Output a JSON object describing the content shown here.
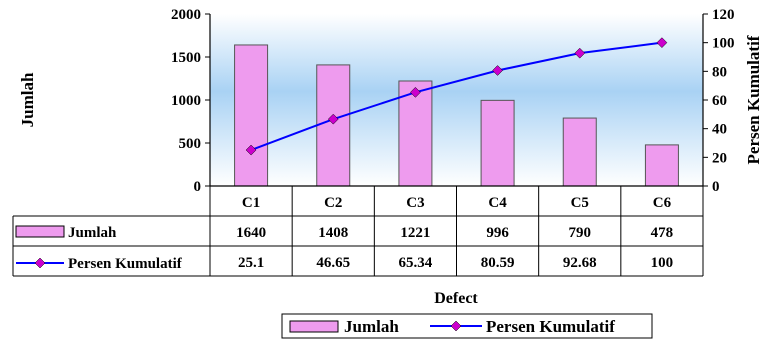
{
  "chart_data": {
    "type": "bar",
    "categories": [
      "C1",
      "C2",
      "C3",
      "C4",
      "C5",
      "C6"
    ],
    "xlabel": "Defect",
    "ylabel": "Jumlah",
    "y2label": "Persen Kumulatif",
    "ylim": [
      0,
      2000
    ],
    "y2lim": [
      0,
      120
    ],
    "yticks": [
      "0",
      "500",
      "1000",
      "1500",
      "2000"
    ],
    "y2ticks": [
      "0",
      "20",
      "40",
      "60",
      "80",
      "100",
      "120"
    ],
    "series": [
      {
        "name": "Jumlah",
        "type": "bar",
        "axis": "left",
        "values": [
          1640,
          1408,
          1221,
          996,
          790,
          478
        ],
        "labels": [
          "1640",
          "1408",
          "1221",
          "996",
          "790",
          "478"
        ],
        "color": "#ee9bee"
      },
      {
        "name": "Persen Kumulatif",
        "type": "line",
        "axis": "right",
        "values": [
          25.1,
          46.65,
          65.34,
          80.59,
          92.68,
          100
        ],
        "labels": [
          "25.1",
          "46.65",
          "65.34",
          "80.59",
          "92.68",
          "100"
        ],
        "color": "#0000ff",
        "marker_color": "#cc00cc"
      }
    ],
    "legend_placement": "bottom",
    "data_table": true,
    "grid": false
  }
}
